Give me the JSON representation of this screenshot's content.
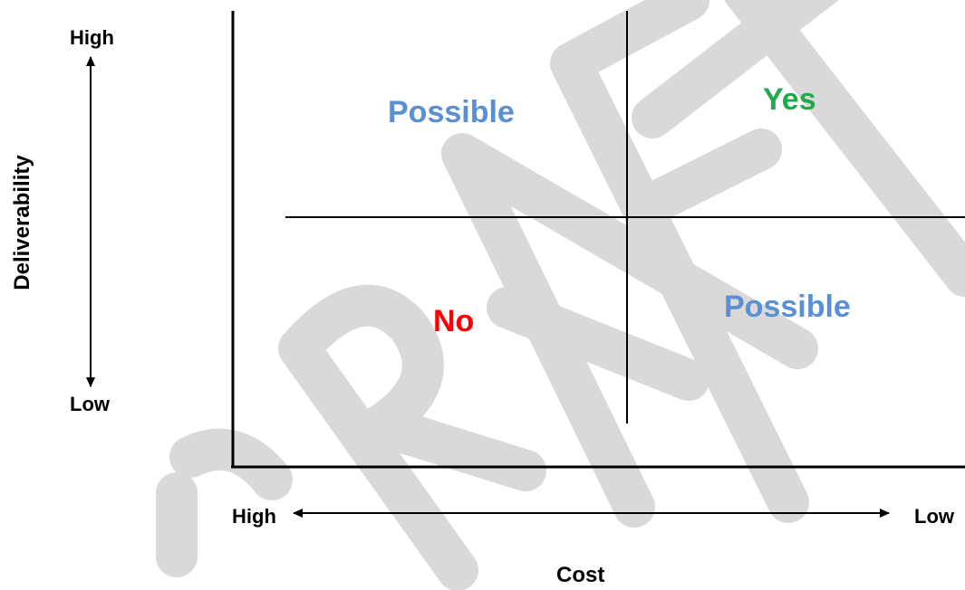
{
  "diagram": {
    "y_axis": {
      "title": "Deliverability",
      "high_label": "High",
      "low_label": "Low"
    },
    "x_axis": {
      "title": "Cost",
      "high_label": "High",
      "low_label": "Low"
    },
    "quadrants": {
      "top_left": {
        "label": "Possible",
        "color": "#5b8fd4"
      },
      "top_right": {
        "label": "Yes",
        "color": "#1faa4b"
      },
      "bottom_left": {
        "label": "No",
        "color": "#ff0000"
      },
      "bottom_right": {
        "label": "Possible",
        "color": "#5b8fd4"
      }
    },
    "watermark": {
      "text": "DRAFT",
      "color": "#d9d9d9"
    }
  }
}
